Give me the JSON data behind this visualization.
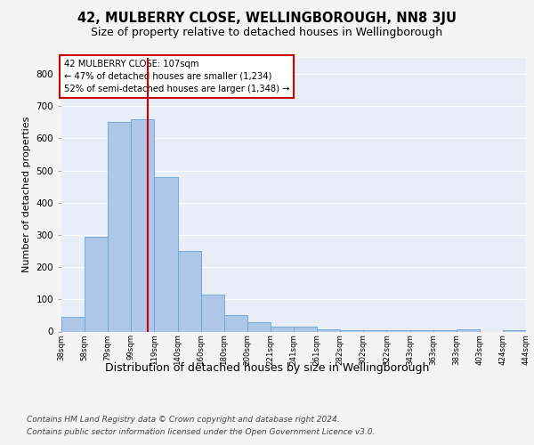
{
  "title1": "42, MULBERRY CLOSE, WELLINGBOROUGH, NN8 3JU",
  "title2": "Size of property relative to detached houses in Wellingborough",
  "xlabel": "Distribution of detached houses by size in Wellingborough",
  "ylabel": "Number of detached properties",
  "footer1": "Contains HM Land Registry data © Crown copyright and database right 2024.",
  "footer2": "Contains public sector information licensed under the Open Government Licence v3.0.",
  "annotation_line1": "42 MULBERRY CLOSE: 107sqm",
  "annotation_line2": "← 47% of detached houses are smaller (1,234)",
  "annotation_line3": "52% of semi-detached houses are larger (1,348) →",
  "bar_values": [
    45,
    295,
    650,
    660,
    480,
    250,
    115,
    50,
    28,
    15,
    15,
    8,
    5,
    5,
    5,
    5,
    5,
    8,
    0,
    5
  ],
  "bar_labels": [
    "38sqm",
    "58sqm",
    "79sqm",
    "99sqm",
    "119sqm",
    "140sqm",
    "160sqm",
    "180sqm",
    "200sqm",
    "221sqm",
    "241sqm",
    "261sqm",
    "282sqm",
    "302sqm",
    "322sqm",
    "343sqm",
    "363sqm",
    "383sqm",
    "403sqm",
    "424sqm",
    "444sqm"
  ],
  "num_bars": 20,
  "vline_x": 3.72,
  "vline_color": "#cc0000",
  "bar_color": "#aec6e8",
  "bar_edge_color": "#6ba3d0",
  "annotation_box_color": "#ffffff",
  "annotation_box_edge_color": "#cc0000",
  "ylim": [
    0,
    850
  ],
  "yticks": [
    0,
    100,
    200,
    300,
    400,
    500,
    600,
    700,
    800
  ],
  "background_color": "#e8eef8",
  "grid_color": "#ffffff",
  "title1_fontsize": 10.5,
  "title2_fontsize": 9,
  "xlabel_fontsize": 9,
  "ylabel_fontsize": 8,
  "footer_fontsize": 6.5,
  "fig_facecolor": "#f4f4f4"
}
